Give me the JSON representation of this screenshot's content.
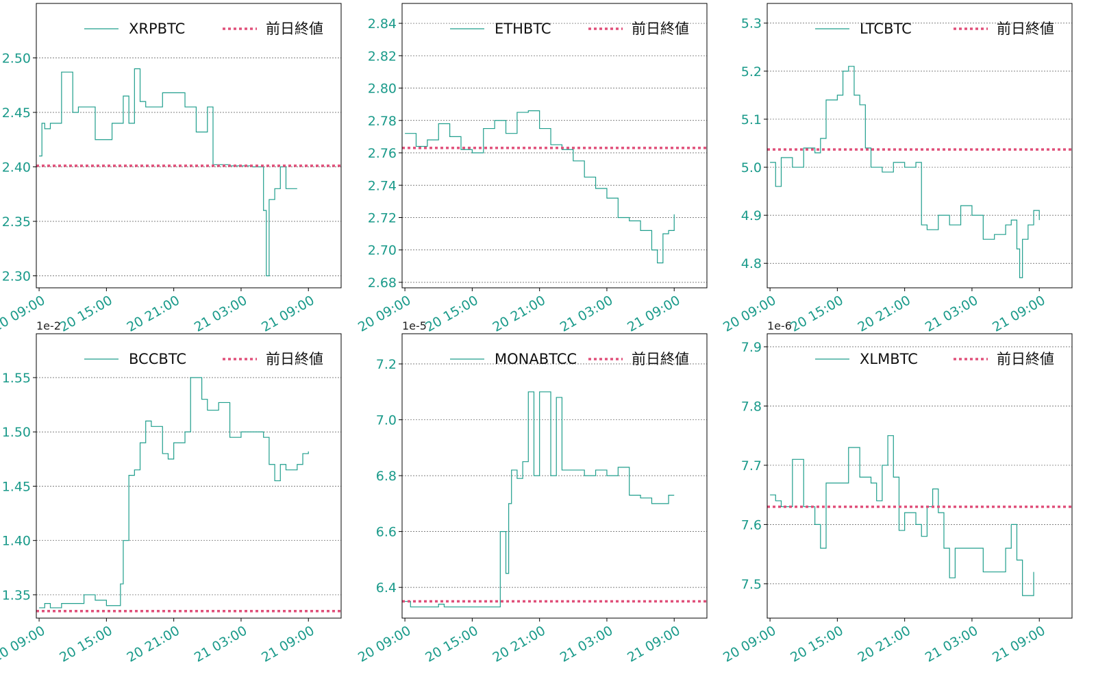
{
  "chart_data": [
    {
      "type": "line",
      "offset": "1e-5",
      "step": "post",
      "grid": true,
      "legend": "upper right",
      "x": [
        "20 09:00",
        "20 09:15",
        "20 09:30",
        "20 10:00",
        "20 11:00",
        "20 12:00",
        "20 12:30",
        "20 14:00",
        "20 15:30",
        "20 16:30",
        "20 17:00",
        "20 17:30",
        "20 18:00",
        "20 18:30",
        "20 20:00",
        "20 22:00",
        "20 23:00",
        "21 00:00",
        "21 00:30",
        "21 02:00",
        "21 04:00",
        "21 05:00",
        "21 05:15",
        "21 05:30",
        "21 06:00",
        "21 06:30",
        "21 07:00",
        "21 08:00"
      ],
      "series": [
        {
          "name": "XRPBTC",
          "color": "#1f9e8c",
          "values": [
            2.41,
            2.44,
            2.435,
            2.44,
            2.487,
            2.45,
            2.455,
            2.425,
            2.44,
            2.465,
            2.44,
            2.49,
            2.46,
            2.455,
            2.468,
            2.455,
            2.432,
            2.455,
            2.402,
            2.401,
            2.4,
            2.36,
            2.3,
            2.37,
            2.38,
            2.4,
            2.38,
            2.38
          ]
        }
      ],
      "reference": {
        "name": "前日終値",
        "value": 2.401,
        "color": "#e0507a"
      },
      "xlim": [
        "20 08:45",
        "21 11:55"
      ],
      "xticks": [
        "20 09:00",
        "20 15:00",
        "20 21:00",
        "21 03:00",
        "21 09:00"
      ],
      "ylim": [
        2.289,
        2.55
      ],
      "yticks": [
        {
          "value": 2.3,
          "label": "2.30"
        },
        2.35,
        {
          "value": 2.4,
          "label": "2.40"
        },
        2.45,
        {
          "value": 2.5,
          "label": "2.50"
        }
      ]
    },
    {
      "type": "line",
      "offset": "1e-2",
      "step": "post",
      "grid": true,
      "legend": "upper right",
      "x": [
        "20 09:00",
        "20 10:00",
        "20 11:00",
        "20 12:00",
        "20 13:00",
        "20 14:00",
        "20 15:00",
        "20 16:00",
        "20 17:00",
        "20 18:00",
        "20 19:00",
        "20 20:00",
        "20 21:00",
        "20 22:00",
        "20 23:00",
        "21 00:00",
        "21 01:00",
        "21 02:00",
        "21 03:00",
        "21 04:00",
        "21 05:00",
        "21 06:00",
        "21 07:00",
        "21 07:30",
        "21 08:00",
        "21 08:30",
        "21 09:00"
      ],
      "series": [
        {
          "name": "ETHBTC",
          "color": "#1f9e8c",
          "values": [
            2.772,
            2.764,
            2.768,
            2.778,
            2.77,
            2.762,
            2.76,
            2.775,
            2.78,
            2.772,
            2.785,
            2.786,
            2.775,
            2.765,
            2.762,
            2.755,
            2.745,
            2.738,
            2.732,
            2.72,
            2.718,
            2.712,
            2.7,
            2.692,
            2.71,
            2.712,
            2.722
          ]
        }
      ],
      "reference": {
        "name": "前日終値",
        "value": 2.763,
        "color": "#e0507a"
      },
      "xlim": [
        "20 08:45",
        "21 11:55"
      ],
      "xticks": [
        "20 09:00",
        "20 15:00",
        "20 21:00",
        "21 03:00",
        "21 09:00"
      ],
      "ylim": [
        2.6766,
        2.8523
      ],
      "yticks": [
        2.68,
        {
          "value": 2.7,
          "label": "2.70"
        },
        2.72,
        2.74,
        2.76,
        2.78,
        {
          "value": 2.8,
          "label": "2.80"
        },
        2.82,
        2.84
      ]
    },
    {
      "type": "line",
      "offset": "1e-3",
      "step": "post",
      "grid": true,
      "legend": "upper right",
      "x": [
        "20 09:00",
        "20 09:30",
        "20 10:00",
        "20 11:00",
        "20 12:00",
        "20 13:00",
        "20 13:30",
        "20 14:00",
        "20 15:00",
        "20 15:30",
        "20 16:00",
        "20 16:30",
        "20 17:00",
        "20 17:30",
        "20 18:00",
        "20 19:00",
        "20 20:00",
        "20 21:00",
        "20 22:00",
        "20 22:30",
        "20 23:00",
        "21 00:00",
        "21 01:00",
        "21 02:00",
        "21 03:00",
        "21 04:00",
        "21 05:00",
        "21 06:00",
        "21 06:30",
        "21 07:00",
        "21 07:15",
        "21 07:30",
        "21 08:00",
        "21 08:30",
        "21 09:00"
      ],
      "series": [
        {
          "name": "LTCBTC",
          "color": "#1f9e8c",
          "values": [
            5.01,
            4.96,
            5.02,
            5.0,
            5.04,
            5.03,
            5.06,
            5.14,
            5.15,
            5.2,
            5.21,
            5.15,
            5.13,
            5.04,
            5.0,
            4.99,
            5.01,
            5.0,
            5.01,
            4.88,
            4.87,
            4.9,
            4.88,
            4.92,
            4.9,
            4.85,
            4.86,
            4.88,
            4.89,
            4.83,
            4.77,
            4.85,
            4.88,
            4.91,
            4.89
          ]
        }
      ],
      "reference": {
        "name": "前日終値",
        "value": 5.037,
        "color": "#e0507a"
      },
      "xlim": [
        "20 08:45",
        "21 11:55"
      ],
      "xticks": [
        "20 09:00",
        "20 15:00",
        "20 21:00",
        "21 03:00",
        "21 09:00"
      ],
      "ylim": [
        4.749,
        5.341
      ],
      "yticks": [
        4.8,
        4.9,
        {
          "value": 5,
          "label": "5.0"
        },
        5.1,
        5.2,
        5.3
      ]
    },
    {
      "type": "line",
      "offset": "1e-2",
      "step": "post",
      "grid": true,
      "legend": "upper right",
      "x": [
        "20 09:00",
        "20 09:30",
        "20 10:00",
        "20 11:00",
        "20 13:00",
        "20 14:00",
        "20 15:00",
        "20 16:00",
        "20 16:15",
        "20 16:30",
        "20 17:00",
        "20 17:30",
        "20 18:00",
        "20 18:30",
        "20 19:00",
        "20 20:00",
        "20 20:30",
        "20 21:00",
        "20 22:00",
        "20 22:30",
        "20 23:00",
        "20 23:30",
        "21 00:00",
        "21 01:00",
        "21 02:00",
        "21 03:00",
        "21 04:00",
        "21 05:00",
        "21 05:30",
        "21 06:00",
        "21 06:30",
        "21 07:00",
        "21 08:00",
        "21 08:30",
        "21 09:00"
      ],
      "series": [
        {
          "name": "BCCBTC",
          "color": "#1f9e8c",
          "values": [
            1.338,
            1.342,
            1.338,
            1.342,
            1.35,
            1.345,
            1.34,
            1.34,
            1.36,
            1.4,
            1.46,
            1.465,
            1.49,
            1.51,
            1.505,
            1.48,
            1.475,
            1.49,
            1.5,
            1.55,
            1.55,
            1.53,
            1.52,
            1.527,
            1.495,
            1.5,
            1.5,
            1.495,
            1.47,
            1.455,
            1.47,
            1.465,
            1.47,
            1.48,
            1.482
          ]
        }
      ],
      "reference": {
        "name": "前日終値",
        "value": 1.335,
        "color": "#e0507a"
      },
      "xlim": [
        "20 08:45",
        "21 11:55"
      ],
      "xticks": [
        "20 09:00",
        "20 15:00",
        "20 21:00",
        "21 03:00",
        "21 09:00"
      ],
      "ylim": [
        1.3285,
        1.5904
      ],
      "yticks": [
        1.35,
        {
          "value": 1.4,
          "label": "1.40"
        },
        1.45,
        {
          "value": 1.5,
          "label": "1.50"
        },
        1.55
      ]
    },
    {
      "type": "line",
      "offset": "1e-5",
      "step": "post",
      "grid": true,
      "legend": "upper right",
      "x": [
        "20 09:00",
        "20 09:30",
        "20 12:00",
        "20 12:30",
        "20 17:00",
        "20 17:30",
        "20 18:00",
        "20 18:15",
        "20 18:30",
        "20 19:00",
        "20 19:30",
        "20 20:00",
        "20 20:30",
        "20 21:00",
        "20 22:00",
        "20 22:30",
        "20 23:00",
        "21 00:00",
        "21 01:00",
        "21 02:00",
        "21 03:00",
        "21 04:00",
        "21 05:00",
        "21 06:00",
        "21 07:00",
        "21 08:00",
        "21 08:30",
        "21 09:00"
      ],
      "series": [
        {
          "name": "MONABTCC",
          "color": "#1f9e8c",
          "values": [
            6.35,
            6.33,
            6.34,
            6.33,
            6.33,
            6.6,
            6.45,
            6.7,
            6.82,
            6.79,
            6.85,
            7.1,
            6.8,
            7.1,
            6.8,
            7.08,
            6.82,
            6.82,
            6.8,
            6.82,
            6.8,
            6.83,
            6.73,
            6.72,
            6.7,
            6.7,
            6.73,
            6.73
          ]
        }
      ],
      "reference": {
        "name": "前日終値",
        "value": 6.35,
        "color": "#e0507a"
      },
      "xlim": [
        "20 08:45",
        "21 11:55"
      ],
      "xticks": [
        "20 09:00",
        "20 15:00",
        "20 21:00",
        "21 03:00",
        "21 09:00"
      ],
      "ylim": [
        6.29,
        7.308
      ],
      "yticks": [
        6.4,
        6.6,
        6.8,
        {
          "value": 7,
          "label": "7.0"
        },
        7.2
      ]
    },
    {
      "type": "line",
      "offset": "1e-6",
      "step": "post",
      "grid": true,
      "legend": "upper right",
      "x": [
        "20 09:00",
        "20 09:30",
        "20 10:00",
        "20 11:00",
        "20 12:00",
        "20 13:00",
        "20 13:30",
        "20 14:00",
        "20 15:00",
        "20 16:00",
        "20 17:00",
        "20 18:00",
        "20 18:30",
        "20 19:00",
        "20 19:30",
        "20 20:00",
        "20 20:30",
        "20 21:00",
        "20 22:00",
        "20 22:30",
        "20 23:00",
        "20 23:30",
        "21 00:00",
        "21 00:30",
        "21 01:00",
        "21 01:30",
        "21 03:00",
        "21 04:00",
        "21 05:00",
        "21 06:00",
        "21 06:30",
        "21 07:00",
        "21 07:30",
        "21 08:00",
        "21 08:30"
      ],
      "series": [
        {
          "name": "XLMBTC",
          "color": "#1f9e8c",
          "values": [
            7.65,
            7.64,
            7.63,
            7.71,
            7.63,
            7.6,
            7.56,
            7.67,
            7.67,
            7.73,
            7.68,
            7.67,
            7.64,
            7.7,
            7.75,
            7.68,
            7.59,
            7.62,
            7.6,
            7.58,
            7.63,
            7.66,
            7.62,
            7.56,
            7.51,
            7.56,
            7.56,
            7.52,
            7.52,
            7.56,
            7.6,
            7.54,
            7.48,
            7.48,
            7.52
          ]
        }
      ],
      "reference": {
        "name": "前日終値",
        "value": 7.63,
        "color": "#e0507a"
      },
      "xlim": [
        "20 08:45",
        "21 11:55"
      ],
      "xticks": [
        "20 09:00",
        "20 15:00",
        "20 21:00",
        "21 03:00",
        "21 09:00"
      ],
      "ylim": [
        7.442,
        7.922
      ],
      "yticks": [
        7.5,
        7.6,
        7.7,
        7.8,
        7.9
      ]
    }
  ]
}
